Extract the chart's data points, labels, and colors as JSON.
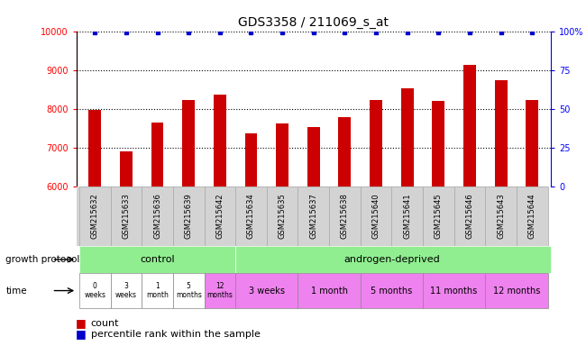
{
  "title": "GDS3358 / 211069_s_at",
  "samples": [
    "GSM215632",
    "GSM215633",
    "GSM215636",
    "GSM215639",
    "GSM215642",
    "GSM215634",
    "GSM215635",
    "GSM215637",
    "GSM215638",
    "GSM215640",
    "GSM215641",
    "GSM215645",
    "GSM215646",
    "GSM215643",
    "GSM215644"
  ],
  "counts": [
    7980,
    6920,
    7650,
    8220,
    8380,
    7380,
    7620,
    7540,
    7780,
    8220,
    8530,
    8200,
    9130,
    8730,
    8220
  ],
  "percentile_ranks": [
    99,
    99,
    99,
    99,
    99,
    99,
    99,
    99,
    99,
    99,
    99,
    99,
    99,
    99,
    99
  ],
  "bar_color": "#cc0000",
  "dot_color": "#0000cc",
  "ylim_left": [
    6000,
    10000
  ],
  "ylim_right": [
    0,
    100
  ],
  "yticks_left": [
    6000,
    7000,
    8000,
    9000,
    10000
  ],
  "yticks_right": [
    0,
    25,
    50,
    75,
    100
  ],
  "protocol_labels": [
    "control",
    "androgen-deprived"
  ],
  "protocol_green": "#90ee90",
  "time_labels_control": [
    "0\nweeks",
    "3\nweeks",
    "1\nmonth",
    "5\nmonths",
    "12\nmonths"
  ],
  "time_labels_androgen": [
    "3 weeks",
    "1 month",
    "5 months",
    "11 months",
    "12 months"
  ],
  "time_colors_control": [
    "#ffffff",
    "#ffffff",
    "#ffffff",
    "#ffffff",
    "#ee82ee"
  ],
  "time_violet": "#ee82ee",
  "legend_count_color": "#cc0000",
  "legend_dot_color": "#0000cc",
  "bg_color": "#ffffff",
  "sample_bg_color": "#d3d3d3"
}
